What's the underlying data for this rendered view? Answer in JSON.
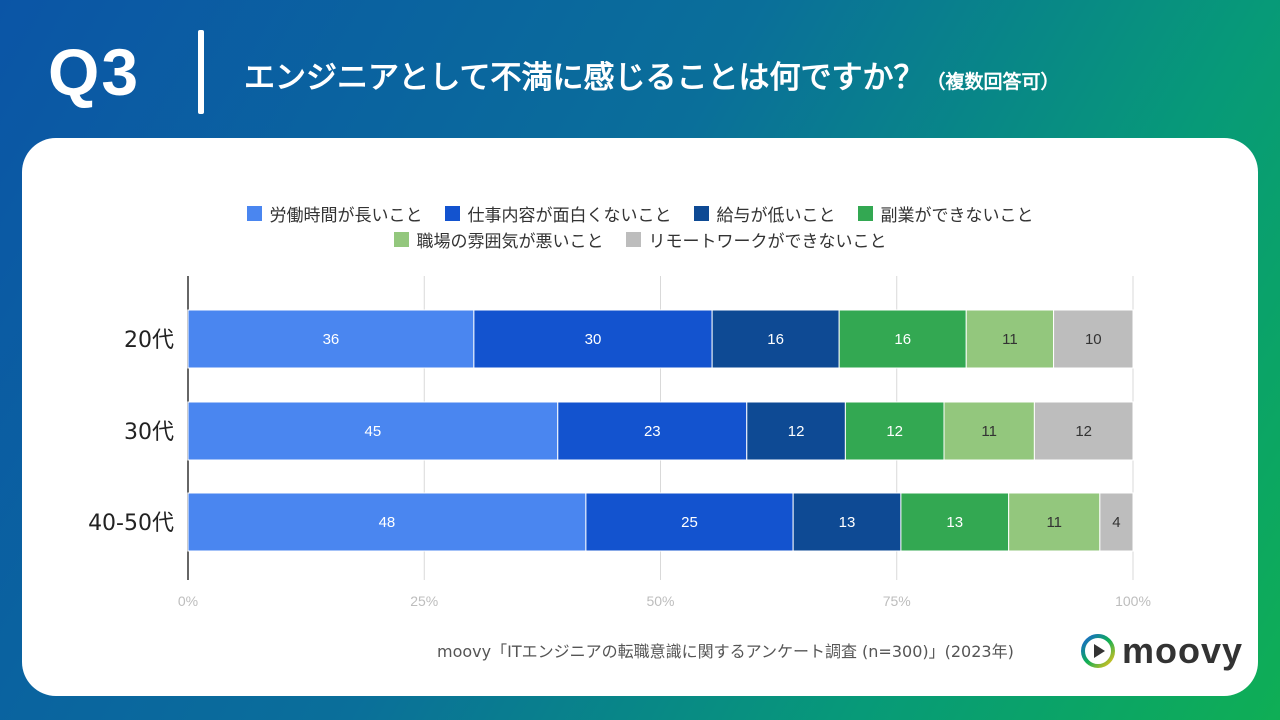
{
  "header": {
    "question": "Q3",
    "title": "エンジニアとして不満に感じることは何ですか？",
    "note": "（複数回答可）"
  },
  "footer": {
    "source": "moovy「ITエンジニアの転職意識に関するアンケート調査 (n=300)」(2023年)",
    "brand": "moovy"
  },
  "chart_data": {
    "type": "bar",
    "orientation": "horizontal",
    "stacked": "percent",
    "categories": [
      "20代",
      "30代",
      "40-50代"
    ],
    "series": [
      {
        "name": "労働時間が長いこと",
        "color": "#4a86f0",
        "values": [
          36,
          45,
          48
        ]
      },
      {
        "name": "仕事内容が面白くないこと",
        "color": "#1353cf",
        "values": [
          30,
          23,
          25
        ]
      },
      {
        "name": "給与が低いこと",
        "color": "#0e4a94",
        "values": [
          16,
          12,
          13
        ]
      },
      {
        "name": "副業ができないこと",
        "color": "#33a852",
        "values": [
          16,
          12,
          13
        ]
      },
      {
        "name": "職場の雰囲気が悪いこと",
        "color": "#93c77d",
        "values": [
          11,
          11,
          11
        ]
      },
      {
        "name": "リモートワークができないこと",
        "color": "#bdbdbd",
        "values": [
          10,
          12,
          4
        ]
      }
    ],
    "xticks": [
      "0%",
      "25%",
      "50%",
      "75%",
      "100%"
    ],
    "xlim": [
      0,
      100
    ],
    "legend_position": "top",
    "grid": true
  }
}
